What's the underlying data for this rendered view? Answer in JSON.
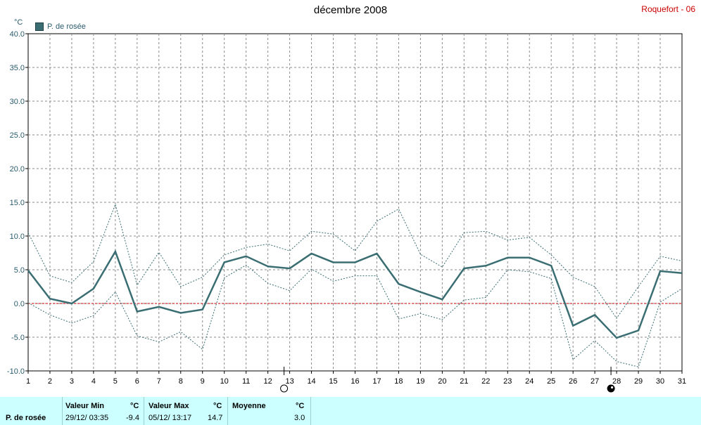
{
  "title": "décembre 2008",
  "station": "Roquefort - 06",
  "unit": "°C",
  "legend": {
    "label": "P. de rosée"
  },
  "colors": {
    "main_line": "#3a6e72",
    "band_line": "#3a6e72",
    "zero_line": "#cc0000",
    "grid": "#8a8a8a",
    "stats_bg": "#ccffff",
    "station": "#cc0000"
  },
  "moon_phases": [
    {
      "day": 13,
      "icon": "full-moon-icon"
    },
    {
      "day": 28,
      "icon": "new-moon-icon"
    }
  ],
  "chart_data": {
    "type": "line",
    "x": [
      1,
      2,
      3,
      4,
      5,
      6,
      7,
      8,
      9,
      10,
      11,
      12,
      13,
      14,
      15,
      16,
      17,
      18,
      19,
      20,
      21,
      22,
      23,
      24,
      25,
      26,
      27,
      28,
      29,
      30,
      31
    ],
    "xlim": [
      1,
      31
    ],
    "ylim": [
      -10,
      40
    ],
    "yticks": [
      -10.0,
      -5.0,
      0.0,
      5.0,
      10.0,
      15.0,
      20.0,
      25.0,
      30.0,
      35.0,
      40.0
    ],
    "ytick_labels": [
      "-10.0",
      "-5.0",
      "0.0",
      "5.0",
      "10.0",
      "15.0",
      "20.0",
      "25.0",
      "30.0",
      "35.0",
      "40.0"
    ],
    "grid": true,
    "series": [
      {
        "name": "P. de rosée",
        "role": "mean",
        "values": [
          4.9,
          0.7,
          0.0,
          2.2,
          7.7,
          -1.2,
          -0.5,
          -1.4,
          -0.9,
          6.1,
          7.0,
          5.5,
          5.2,
          7.4,
          6.1,
          6.1,
          7.4,
          2.9,
          1.7,
          0.6,
          5.2,
          5.6,
          6.8,
          6.8,
          5.6,
          -3.3,
          -1.7,
          -5.1,
          -4.0,
          4.8,
          4.5
        ]
      },
      {
        "role": "max",
        "values": [
          10.5,
          4.1,
          3.1,
          6.2,
          14.7,
          2.7,
          7.6,
          2.5,
          3.9,
          7.2,
          8.3,
          8.8,
          7.8,
          10.7,
          10.3,
          7.8,
          12.2,
          14.0,
          7.3,
          5.4,
          10.5,
          10.7,
          9.4,
          9.8,
          7.2,
          3.9,
          2.5,
          -2.2,
          2.5,
          7.0,
          6.3
        ]
      },
      {
        "role": "min",
        "values": [
          0.1,
          -1.7,
          -2.9,
          -1.8,
          1.7,
          -4.8,
          -5.7,
          -4.2,
          -6.8,
          3.8,
          5.7,
          3.0,
          1.9,
          5.1,
          3.3,
          4.1,
          4.1,
          -2.3,
          -1.5,
          -2.4,
          0.5,
          0.9,
          5.0,
          4.7,
          3.7,
          -8.3,
          -5.5,
          -8.6,
          -9.4,
          0.2,
          2.2
        ]
      }
    ],
    "reference_line": 0.0
  },
  "stats": {
    "series_name": "P. de rosée",
    "min_header": "Valeur Min",
    "min_unit": "°C",
    "min_date": "29/12/  03:35",
    "min_value": "-9.4",
    "max_header": "Valeur Max",
    "max_unit": "°C",
    "max_date": "05/12/  13:17",
    "max_value": "14.7",
    "avg_header": "Moyenne",
    "avg_unit": "°C",
    "avg_value": "3.0"
  }
}
